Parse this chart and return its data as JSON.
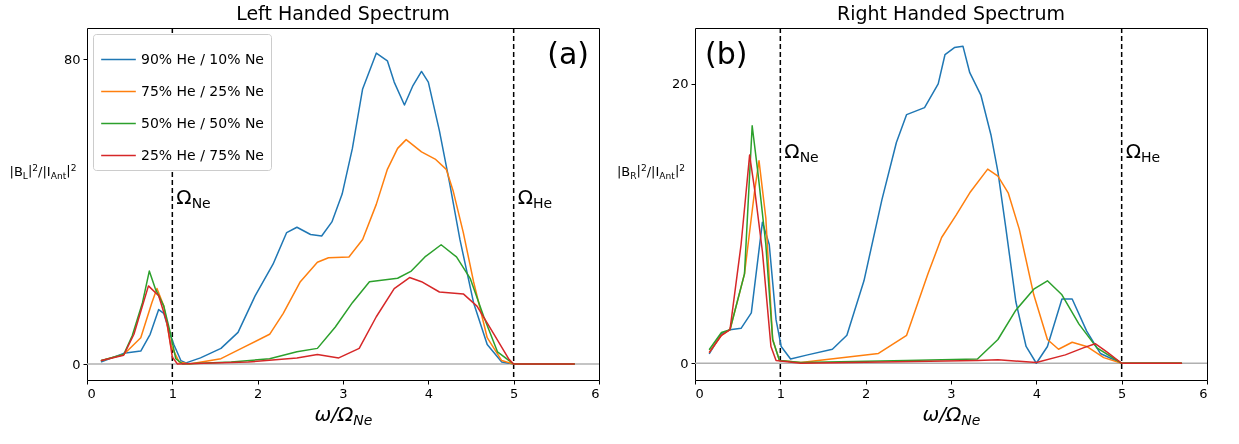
{
  "chart_data": [
    {
      "type": "line",
      "title": "Left Handed Spectrum",
      "xlabel": "ω/Ω$_{Ne}$",
      "ylabel": "|B$_{L}$|$^{2}$/|I$_{Ant}$|$^{2}$",
      "xlim": [
        0,
        6
      ],
      "xticks": [
        0,
        1,
        2,
        3,
        4,
        5,
        6
      ],
      "ylim": [
        -4.2,
        88.2
      ],
      "yticks": [
        0,
        80
      ],
      "legend": "top left",
      "line_style": "solid",
      "series": [
        {
          "name": "90% He / 10% Ne",
          "color": "#1f77b4",
          "x": [
            0.17,
            0.43,
            0.63,
            0.74,
            0.84,
            0.9,
            0.96,
            1.02,
            1.1,
            1.16,
            1.33,
            1.57,
            1.77,
            1.97,
            2.18,
            2.34,
            2.46,
            2.62,
            2.75,
            2.87,
            2.99,
            3.11,
            3.23,
            3.39,
            3.52,
            3.6,
            3.72,
            3.82,
            3.92,
            4.0,
            4.13,
            4.25,
            4.37,
            4.53,
            4.69,
            4.86,
            5.0,
            5.71
          ],
          "values": [
            0.6,
            2.8,
            3.4,
            7.8,
            14.3,
            13.3,
            8.7,
            5,
            0.9,
            0.3,
            1.6,
            4.1,
            8.3,
            17.9,
            26.2,
            34.5,
            35.9,
            34,
            33.6,
            37.3,
            44.6,
            56.6,
            72.2,
            81.6,
            79.6,
            74,
            68,
            73.1,
            76.8,
            74,
            61.2,
            47.4,
            32.7,
            16.1,
            5.1,
            0.5,
            0,
            0
          ]
        },
        {
          "name": "75% He / 25% Ne",
          "color": "#ff7f0e",
          "x": [
            0.17,
            0.43,
            0.63,
            0.76,
            0.82,
            0.9,
            0.98,
            1.08,
            1.2,
            1.57,
            1.81,
            2.14,
            2.3,
            2.5,
            2.7,
            2.83,
            3.07,
            3.23,
            3.39,
            3.52,
            3.64,
            3.74,
            3.92,
            4.08,
            4.21,
            4.29,
            4.41,
            4.53,
            4.69,
            4.86,
            5.0,
            5.71
          ],
          "values": [
            0.9,
            2.5,
            6.9,
            16.1,
            19.8,
            15.2,
            5.1,
            0.5,
            0,
            1.4,
            4.1,
            7.8,
            13.3,
            21.6,
            26.7,
            27.9,
            28.1,
            32.7,
            41.9,
            51.1,
            56.6,
            58.9,
            55.7,
            53.8,
            51.1,
            45.5,
            34.5,
            21.6,
            6.9,
            0.9,
            0,
            0
          ]
        },
        {
          "name": "50% He / 50% Ne",
          "color": "#2ca02c",
          "x": [
            0.17,
            0.43,
            0.53,
            0.65,
            0.73,
            0.8,
            0.9,
            0.98,
            1.04,
            1.12,
            1.69,
            2.14,
            2.46,
            2.7,
            2.91,
            3.11,
            3.31,
            3.64,
            3.8,
            3.96,
            4.15,
            4.33,
            4.49,
            4.65,
            4.81,
            5.0,
            5.71
          ],
          "values": [
            0.9,
            2.5,
            7.4,
            16.1,
            24.4,
            19.8,
            15.2,
            7.8,
            1.4,
            0,
            0.5,
            1.4,
            3.2,
            4.1,
            9.7,
            16.1,
            21.6,
            22.5,
            24.4,
            28.1,
            31.3,
            28.1,
            22.5,
            12.4,
            3.2,
            0,
            0
          ]
        },
        {
          "name": "25% He / 75% Ne",
          "color": "#d62728",
          "x": [
            0.17,
            0.43,
            0.55,
            0.72,
            0.84,
            0.94,
            1.0,
            1.06,
            1.89,
            2.46,
            2.7,
            2.95,
            3.19,
            3.39,
            3.6,
            3.78,
            3.92,
            4.13,
            4.41,
            4.57,
            4.77,
            4.94,
            5.0,
            5.71
          ],
          "values": [
            0.9,
            2.3,
            7.8,
            20.5,
            17.9,
            10.6,
            1.8,
            0,
            0.5,
            1.6,
            2.5,
            1.6,
            4.1,
            12.4,
            19.8,
            22.7,
            21.6,
            18.9,
            18.4,
            15.2,
            7.8,
            1.4,
            0,
            0
          ]
        }
      ],
      "ref_lines": [
        {
          "axis": "y",
          "value": 0,
          "color": "#b0b0b0",
          "line_style": "solid"
        },
        {
          "axis": "x",
          "value": 1,
          "label": "Ω$_{Ne}$",
          "color": "#000000",
          "line_style": "dashed"
        },
        {
          "axis": "x",
          "value": 5,
          "label": "Ω$_{He}$",
          "color": "#000000",
          "line_style": "dashed"
        }
      ],
      "annotations": [
        "(a)"
      ]
    },
    {
      "type": "line",
      "title": "Right Handed Spectrum",
      "xlabel": "ω/Ω$_{Ne}$",
      "ylabel": "|B$_{R}$|$^{2}$/|I$_{Ant}$|$^{2}$",
      "xlim": [
        0,
        6
      ],
      "xticks": [
        0,
        1,
        2,
        3,
        4,
        5,
        6
      ],
      "ylim": [
        -1.2,
        24
      ],
      "yticks": [
        0,
        20
      ],
      "line_style": "solid",
      "series": [
        {
          "color": "#1f77b4",
          "x": [
            0.17,
            0.31,
            0.41,
            0.54,
            0.66,
            0.79,
            0.87,
            0.95,
            1.01,
            1.12,
            1.32,
            1.61,
            1.78,
            1.98,
            2.19,
            2.36,
            2.48,
            2.69,
            2.85,
            2.93,
            3.04,
            3.14,
            3.22,
            3.35,
            3.47,
            3.55,
            3.64,
            3.76,
            3.88,
            4.0,
            4.13,
            4.3,
            4.42,
            4.59,
            4.75,
            5.0,
            5.7
          ],
          "values": [
            0.7,
            2.1,
            2.4,
            2.5,
            3.6,
            10.1,
            8.5,
            3.1,
            1.2,
            0.3,
            0.6,
            1.0,
            2.0,
            5.9,
            11.7,
            15.8,
            17.8,
            18.3,
            20.0,
            22.1,
            22.6,
            22.7,
            20.8,
            19.2,
            16.3,
            13.7,
            9.8,
            4.4,
            1.2,
            0,
            1.2,
            4.6,
            4.6,
            2.3,
            0.7,
            0,
            0
          ]
        },
        {
          "color": "#ff7f0e",
          "x": [
            0.17,
            0.31,
            0.41,
            0.58,
            0.7,
            0.75,
            0.83,
            0.91,
            0.99,
            1.24,
            2.15,
            2.48,
            2.73,
            2.89,
            3.06,
            3.22,
            3.43,
            3.55,
            3.67,
            3.8,
            3.97,
            4.13,
            4.26,
            4.42,
            4.59,
            4.79,
            5.0,
            5.7
          ],
          "values": [
            0.8,
            2,
            2.4,
            6.4,
            12.4,
            14.5,
            10.4,
            1.7,
            0.2,
            0.05,
            0.7,
            2,
            6.4,
            9,
            10.6,
            12.2,
            13.9,
            13.4,
            12.2,
            9.6,
            4.9,
            1.7,
            1.0,
            1.5,
            1.2,
            0.4,
            0,
            0
          ]
        },
        {
          "color": "#2ca02c",
          "x": [
            0.17,
            0.31,
            0.41,
            0.58,
            0.67,
            0.74,
            0.83,
            0.91,
            0.99,
            1.24,
            2.48,
            3.31,
            3.55,
            3.76,
            3.97,
            4.13,
            4.3,
            4.5,
            4.71,
            5.0,
            5.7
          ],
          "values": [
            1,
            2.2,
            2.4,
            6.4,
            17,
            13.5,
            8.5,
            1.7,
            0.2,
            0.05,
            0.2,
            0.3,
            1.7,
            3.8,
            5.3,
            5.9,
            4.9,
            2.8,
            1.1,
            0,
            0
          ]
        },
        {
          "color": "#d62728",
          "x": [
            0.17,
            0.31,
            0.41,
            0.54,
            0.64,
            0.7,
            0.79,
            0.89,
            0.95,
            1.24,
            3.31,
            3.55,
            4.0,
            4.34,
            4.55,
            4.69,
            4.83,
            5.0,
            5.7
          ],
          "values": [
            0.8,
            2,
            2.4,
            8.5,
            14.9,
            12.4,
            8,
            1.2,
            0.2,
            0,
            0.2,
            0.25,
            0.05,
            0.6,
            1.1,
            1.4,
            0.8,
            0,
            0
          ]
        }
      ],
      "ref_lines": [
        {
          "axis": "y",
          "value": 0,
          "color": "#b0b0b0",
          "line_style": "solid"
        },
        {
          "axis": "x",
          "value": 1,
          "label": "Ω$_{Ne}$",
          "color": "#000000",
          "line_style": "dashed"
        },
        {
          "axis": "x",
          "value": 5,
          "label": "Ω$_{He}$",
          "color": "#000000",
          "line_style": "dashed"
        }
      ],
      "annotations": [
        "(b)"
      ]
    }
  ]
}
